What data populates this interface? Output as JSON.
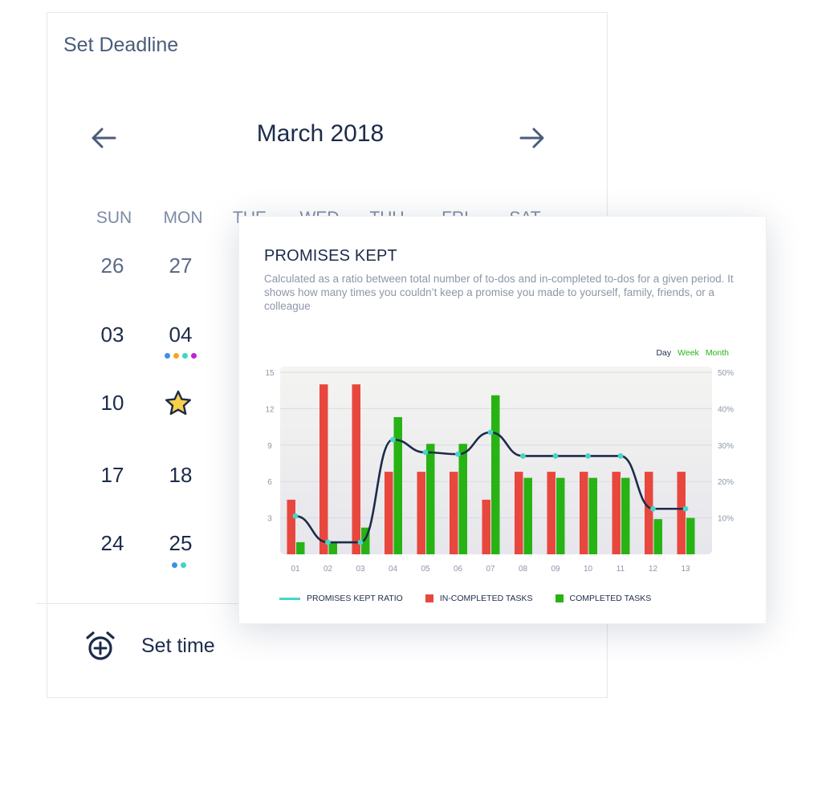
{
  "calendar": {
    "title": "Set Deadline",
    "month": "March 2018",
    "weekdays": [
      "SUN",
      "MON",
      "TUE",
      "WED",
      "THU",
      "FRI",
      "SAT"
    ],
    "rows": [
      [
        "26",
        "27"
      ],
      [
        "03",
        "04"
      ],
      [
        "10",
        ""
      ],
      [
        "17",
        "18"
      ],
      [
        "24",
        "25"
      ]
    ],
    "day04_dot_colors": [
      "#3d8fe6",
      "#f5a623",
      "#40d5c1",
      "#b727d4"
    ],
    "day25_dot_colors": [
      "#3d8fe6",
      "#40d5c1"
    ],
    "set_time_label": "Set time",
    "icons": {
      "prev": "arrow-left-icon",
      "next": "arrow-right-icon",
      "star": "star-icon",
      "alarm": "alarm-add-icon"
    }
  },
  "chart_card": {
    "title": "PROMISES KEPT",
    "description": "Calculated as a ratio between total number of to-dos and in-completed to-dos for a given period. It shows how many times you couldn’t keep a promise you made to yourself, family, friends, or a colleague",
    "range_tabs": [
      {
        "label": "Day",
        "color": "#1d2b4a"
      },
      {
        "label": "Week",
        "color": "#27b314"
      },
      {
        "label": "Month",
        "color": "#27b314"
      }
    ],
    "legend": {
      "ratio": "PROMISES KEPT RATIO",
      "incompleted": "IN-COMPLETED TASKS",
      "completed": "COMPLETED TASKS"
    }
  },
  "chart_data": {
    "type": "bar",
    "categories": [
      "01",
      "02",
      "03",
      "04",
      "05",
      "06",
      "07",
      "08",
      "09",
      "10",
      "11",
      "12",
      "13"
    ],
    "y_left_ticks": [
      "15",
      "12",
      "9",
      "6",
      "3"
    ],
    "y_right_ticks": [
      "50%",
      "40%",
      "30%",
      "20%",
      "10%"
    ],
    "ylim_left": [
      0,
      15
    ],
    "ylim_right": [
      0,
      50
    ],
    "colors": {
      "incompleted": "#e8473e",
      "completed": "#27b314",
      "ratio_line": "#1d2b4a",
      "ratio_points": "#48d5c8"
    },
    "series": [
      {
        "name": "IN-COMPLETED TASKS",
        "axis": "left",
        "values": [
          4.5,
          14,
          14,
          6.8,
          6.8,
          6.8,
          4.5,
          6.8,
          6.8,
          6.8,
          6.8,
          6.8,
          6.8
        ]
      },
      {
        "name": "COMPLETED TASKS",
        "axis": "left",
        "values": [
          1.0,
          1.0,
          2.2,
          11.3,
          9.1,
          9.1,
          13.1,
          6.3,
          6.3,
          6.3,
          6.3,
          2.9,
          3.0
        ]
      },
      {
        "name": "PROMISES KEPT RATIO",
        "axis": "right",
        "values": [
          10.5,
          3.3,
          3.3,
          31.5,
          28,
          27.5,
          33.5,
          27,
          27,
          27,
          27,
          12.5,
          12.5
        ]
      }
    ]
  }
}
